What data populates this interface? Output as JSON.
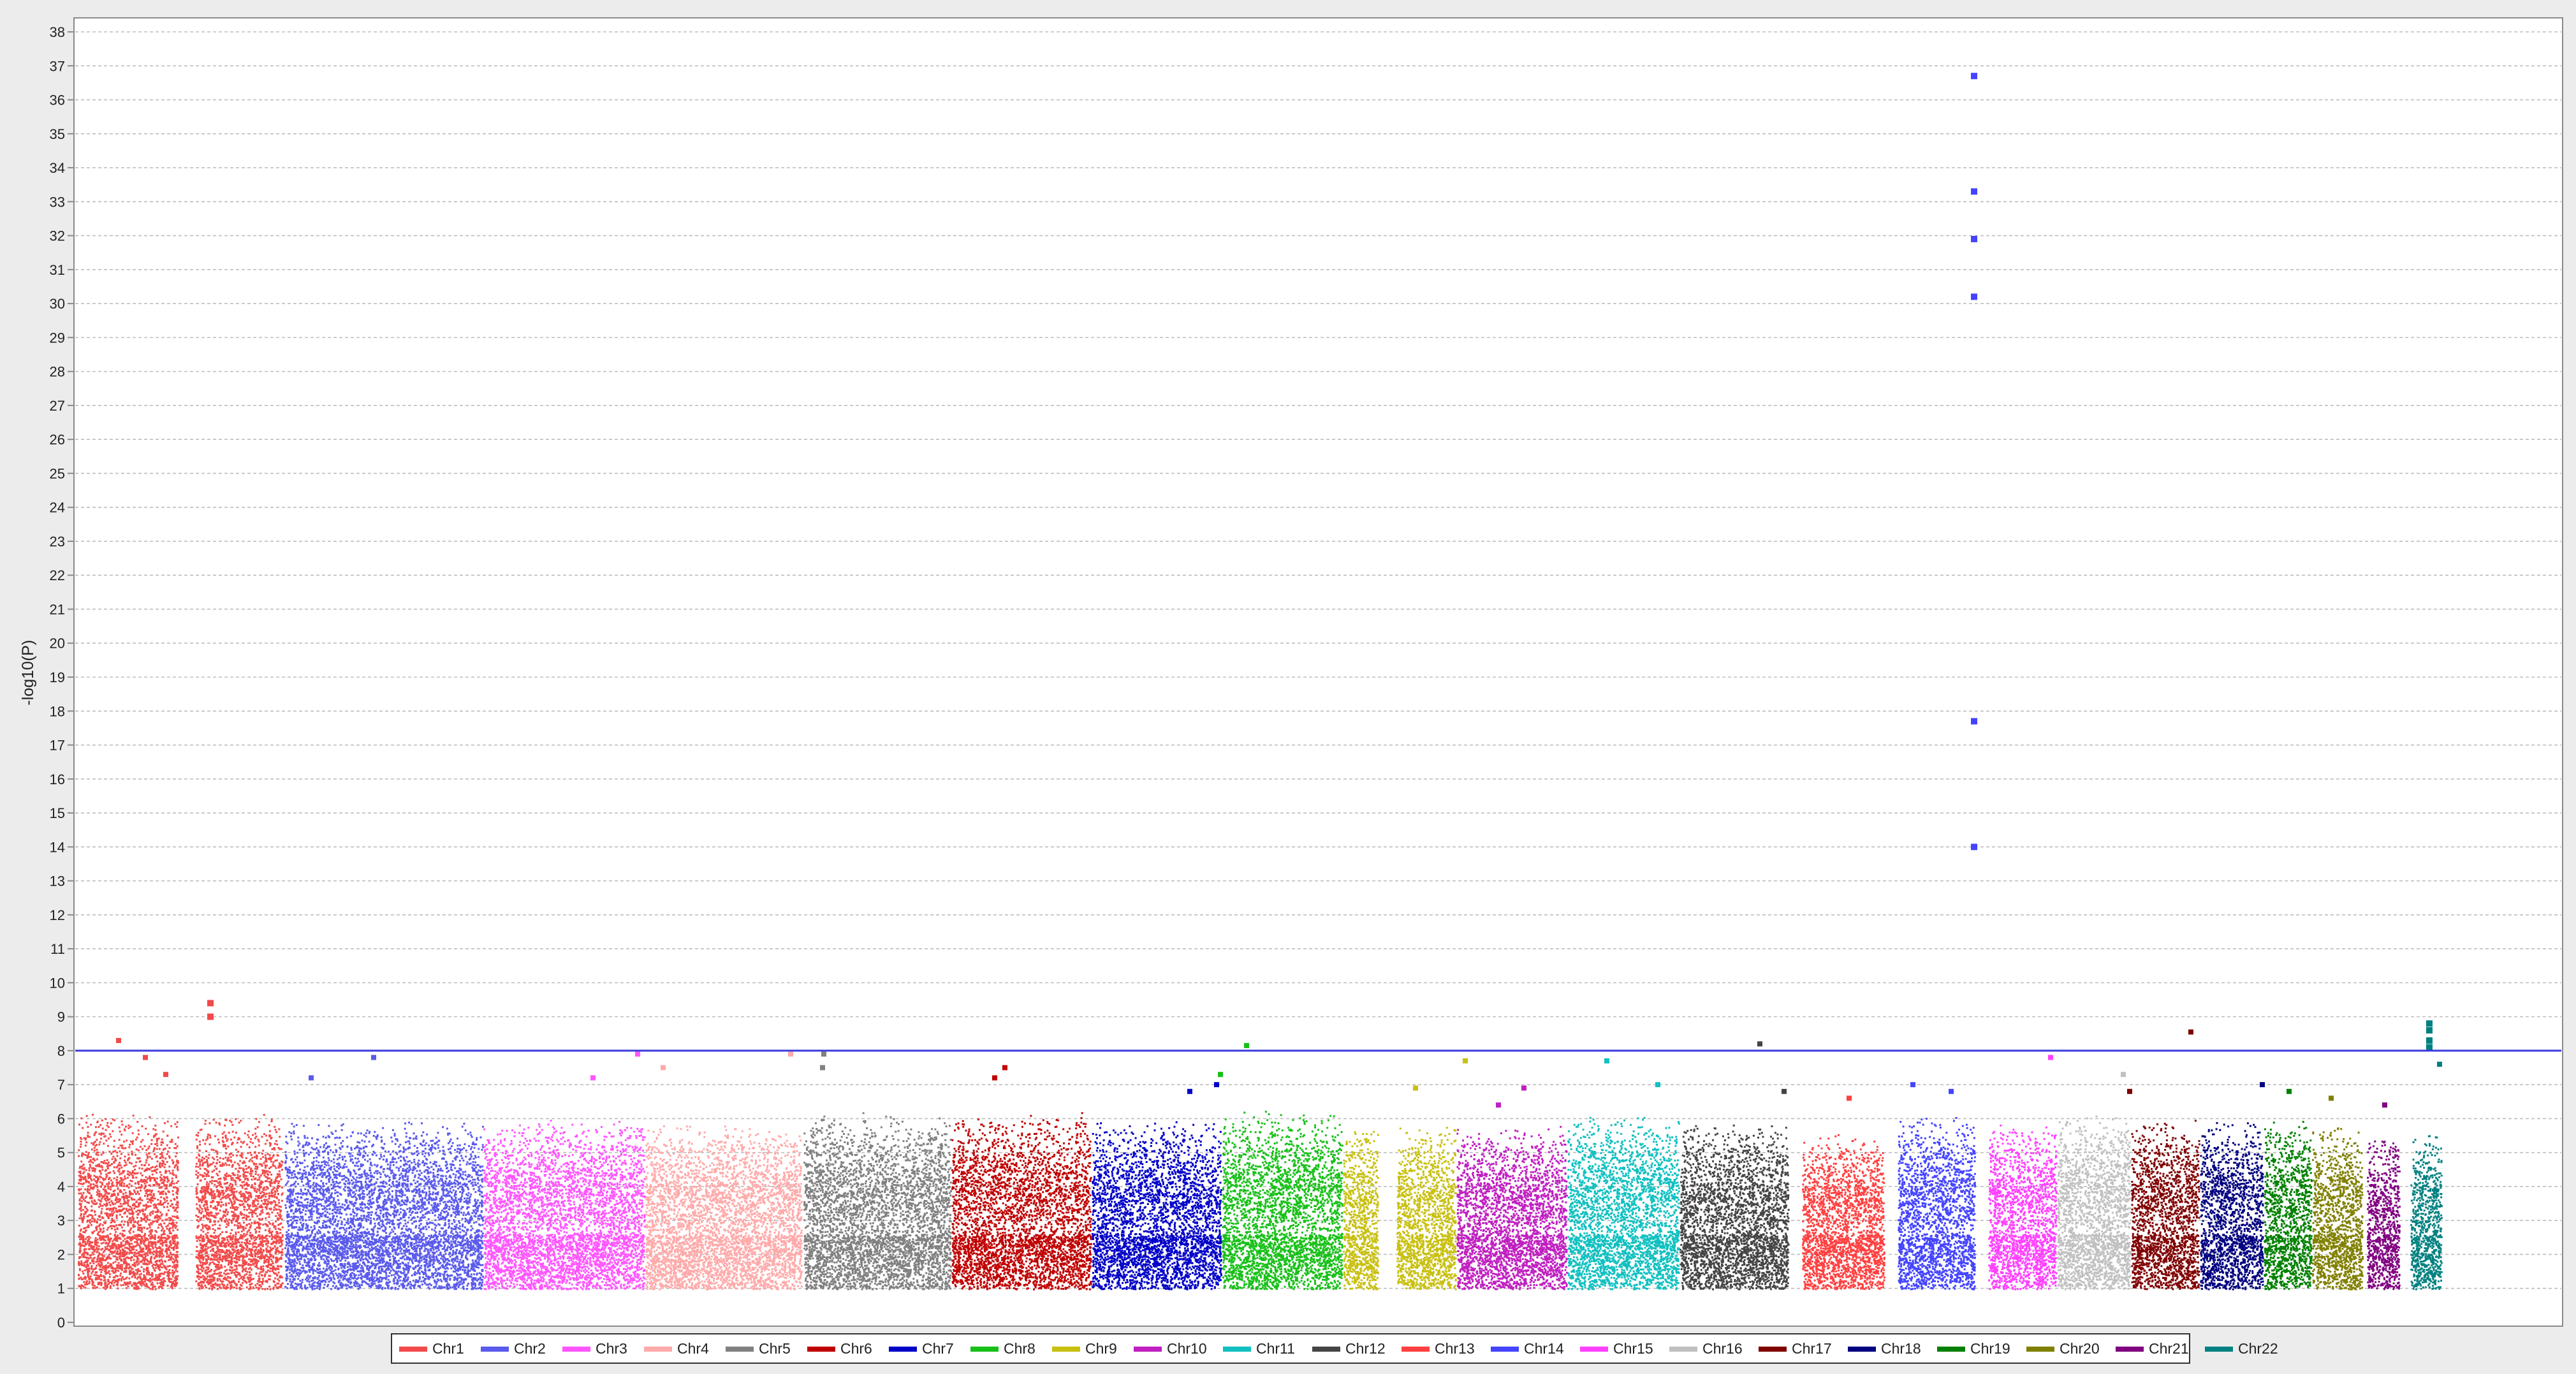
{
  "chart_data": {
    "type": "scatter",
    "subtype": "manhattan",
    "title": "",
    "xlabel": "",
    "ylabel": "-log10(P)",
    "ylim": [
      0,
      38
    ],
    "yticks": [
      0,
      1,
      2,
      3,
      4,
      5,
      6,
      7,
      8,
      9,
      10,
      11,
      12,
      13,
      14,
      15,
      16,
      17,
      18,
      19,
      20,
      21,
      22,
      23,
      24,
      25,
      26,
      27,
      28,
      29,
      30,
      31,
      32,
      33,
      34,
      35,
      36,
      37,
      38
    ],
    "grid": true,
    "legend_position": "bottom",
    "significance_threshold": {
      "value": 8,
      "color": "#3a3adb"
    },
    "baseline_min": 1,
    "series": [
      {
        "name": "Chr1",
        "color": "#f24a4a",
        "typical_max": 6.2,
        "peaks": [
          8.3,
          7.8,
          7.3
        ],
        "clusters": [
          [
            9.4,
            9.0
          ]
        ]
      },
      {
        "name": "Chr2",
        "color": "#5a5aec",
        "typical_max": 6.0,
        "peaks": [
          7.2,
          7.8
        ],
        "clusters": []
      },
      {
        "name": "Chr3",
        "color": "#ff55ff",
        "typical_max": 6.0,
        "peaks": [
          7.2,
          7.9
        ],
        "clusters": []
      },
      {
        "name": "Chr4",
        "color": "#ffaaaa",
        "typical_max": 5.9,
        "peaks": [
          7.5,
          7.9
        ],
        "clusters": []
      },
      {
        "name": "Chr5",
        "color": "#808080",
        "typical_max": 6.2,
        "peaks": [
          7.5,
          7.9
        ],
        "clusters": []
      },
      {
        "name": "Chr6",
        "color": "#c00000",
        "typical_max": 6.2,
        "peaks": [
          7.5,
          7.2
        ],
        "clusters": []
      },
      {
        "name": "Chr7",
        "color": "#0000c8",
        "typical_max": 6.0,
        "peaks": [
          6.8,
          7.0
        ],
        "clusters": []
      },
      {
        "name": "Chr8",
        "color": "#18c018",
        "typical_max": 6.3,
        "peaks": [
          8.15,
          7.3
        ],
        "clusters": []
      },
      {
        "name": "Chr9",
        "color": "#c8c010",
        "typical_max": 5.8,
        "peaks": [
          7.7,
          6.9
        ],
        "clusters": []
      },
      {
        "name": "Chr10",
        "color": "#c020c0",
        "typical_max": 5.8,
        "peaks": [
          6.4,
          6.9
        ],
        "clusters": []
      },
      {
        "name": "Chr11",
        "color": "#10c0c0",
        "typical_max": 6.2,
        "peaks": [
          7.7,
          7.0
        ],
        "clusters": []
      },
      {
        "name": "Chr12",
        "color": "#444444",
        "typical_max": 5.9,
        "peaks": [
          8.2,
          6.8
        ],
        "clusters": []
      },
      {
        "name": "Chr13",
        "color": "#ff4040",
        "typical_max": 5.6,
        "peaks": [
          6.6
        ],
        "clusters": []
      },
      {
        "name": "Chr14",
        "color": "#4444ff",
        "typical_max": 6.1,
        "peaks": [
          7.0,
          6.8
        ],
        "clusters": [
          [
            36.7,
            33.3,
            31.9,
            30.2,
            17.7,
            14.0
          ]
        ]
      },
      {
        "name": "Chr15",
        "color": "#ff40ff",
        "typical_max": 6.0,
        "peaks": [
          7.8
        ],
        "clusters": []
      },
      {
        "name": "Chr16",
        "color": "#c0c0c0",
        "typical_max": 6.2,
        "peaks": [
          7.3
        ],
        "clusters": []
      },
      {
        "name": "Chr17",
        "color": "#800000",
        "typical_max": 6.0,
        "peaks": [
          8.55,
          6.8
        ],
        "clusters": []
      },
      {
        "name": "Chr18",
        "color": "#000080",
        "typical_max": 6.0,
        "peaks": [
          7.0
        ],
        "clusters": []
      },
      {
        "name": "Chr19",
        "color": "#008000",
        "typical_max": 6.0,
        "peaks": [
          6.8
        ],
        "clusters": []
      },
      {
        "name": "Chr20",
        "color": "#808000",
        "typical_max": 5.8,
        "peaks": [
          6.6
        ],
        "clusters": []
      },
      {
        "name": "Chr21",
        "color": "#800080",
        "typical_max": 5.6,
        "peaks": [
          6.4
        ],
        "clusters": []
      },
      {
        "name": "Chr22",
        "color": "#008080",
        "typical_max": 5.6,
        "peaks": [
          7.6
        ],
        "clusters": [
          [
            8.8,
            8.6,
            8.3,
            8.1
          ]
        ]
      }
    ]
  }
}
